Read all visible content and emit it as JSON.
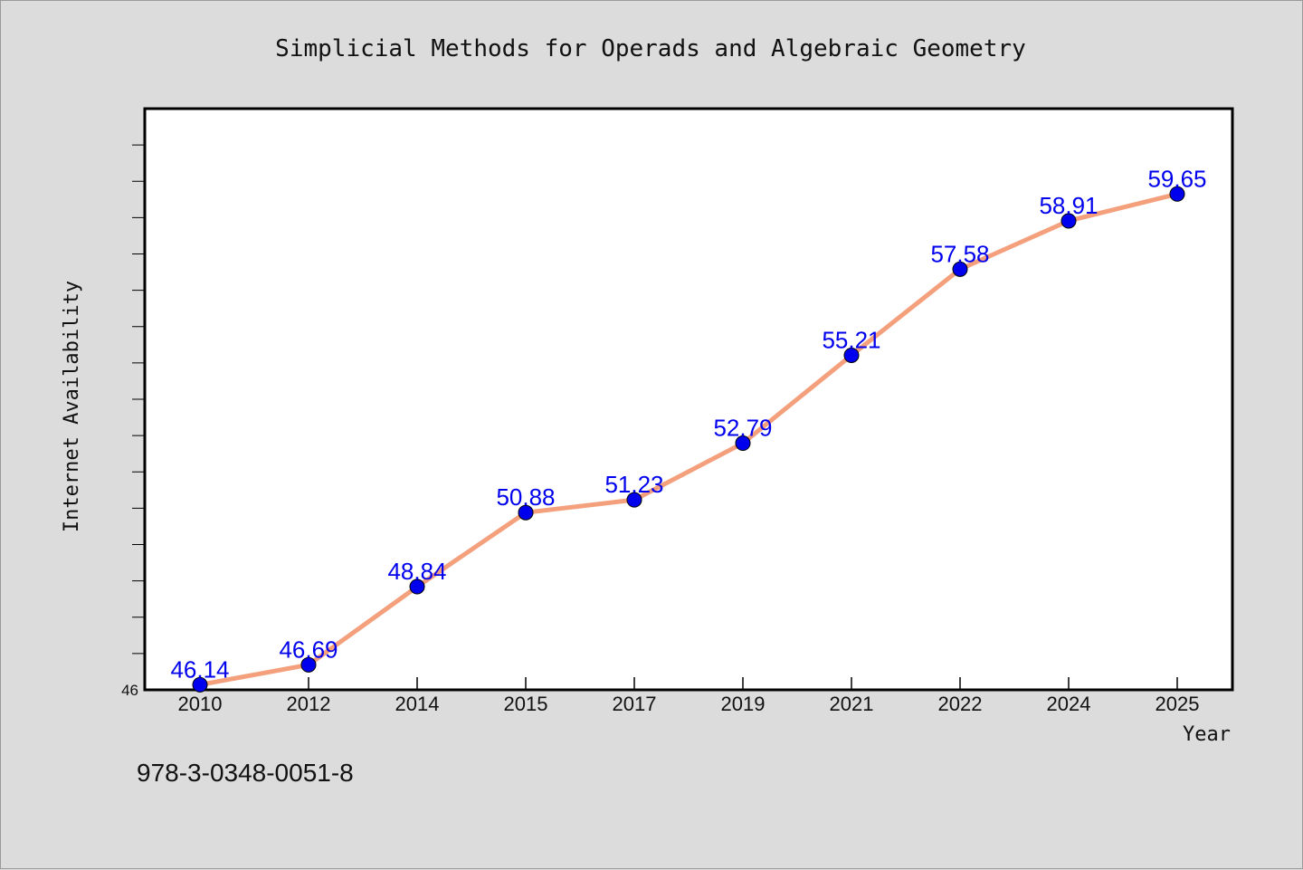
{
  "chart_data": {
    "type": "line",
    "title": "Simplicial Methods for Operads and Algebraic Geometry",
    "xlabel": "Year",
    "ylabel": "Internet Availability",
    "categories": [
      "2010",
      "2012",
      "2014",
      "2015",
      "2017",
      "2019",
      "2021",
      "2022",
      "2024",
      "2025"
    ],
    "series": [
      {
        "values": [
          46.14,
          46.69,
          48.84,
          50.88,
          51.23,
          52.79,
          55.21,
          57.58,
          58.91,
          59.65
        ],
        "data_labels": [
          "46.14",
          "46.69",
          "48.84",
          "50.88",
          "51.23",
          "52.79",
          "55.21",
          "57.58",
          "58.91",
          "59.65"
        ]
      }
    ],
    "ylim": [
      46,
      62
    ],
    "ytick_labels": [
      "46"
    ],
    "grid": false,
    "line_color": "#f4a07c",
    "marker_color": "#0000ee",
    "label_color": "#0000ee"
  },
  "footer": {
    "isbn": "978-3-0348-0051-8"
  }
}
